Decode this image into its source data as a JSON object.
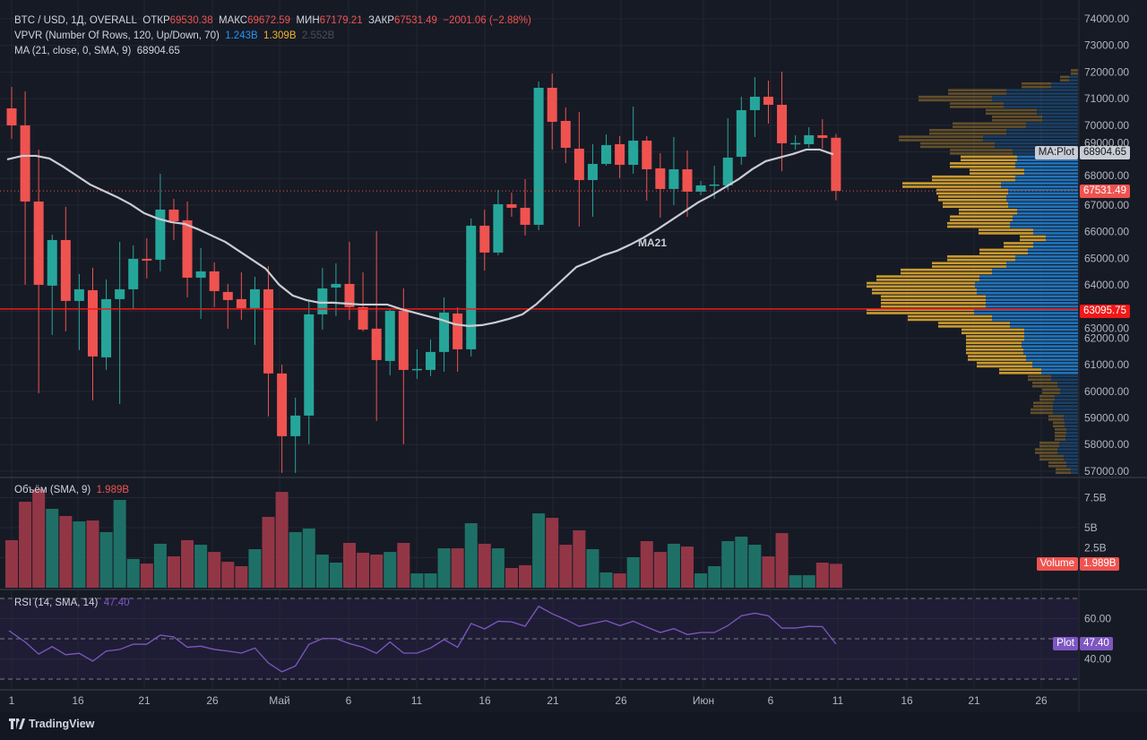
{
  "legend": {
    "symbol": "BTC / USD, 1Д, OVERALL",
    "open_label": "ОТКР",
    "open": "69530.38",
    "high_label": "МАКС",
    "high": "69672.59",
    "low_label": "МИН",
    "low": "67179.21",
    "close_label": "ЗАКР",
    "close": "67531.49",
    "change": "−2001.06 (−2.88%)",
    "vpvr_title": "VPVR (Number Of Rows, 120, Up/Down, 70)",
    "vpvr_up": "1.243B",
    "vpvr_down": "1.309B",
    "vpvr_total": "2.552B",
    "ma_title": "MA (21, close, 0, SMA, 9)",
    "ma_value": "68904.65",
    "volume_title": "Объём (SMA, 9)",
    "volume_value": "1.989B",
    "rsi_title": "RSI (14, SMA, 14)",
    "rsi_value": "47.40"
  },
  "ma_line_label": "MA21",
  "price_axis": [
    "74000.00",
    "73000.00",
    "72000.00",
    "71000.00",
    "70000.00",
    "69000.00",
    "68000.00",
    "67000.00",
    "66000.00",
    "65000.00",
    "64000.00",
    "63000.00",
    "62000.00",
    "61000.00",
    "60000.00",
    "59000.00",
    "58000.00",
    "57000.00"
  ],
  "tags": {
    "ma_name": "MA:Plot",
    "ma_value": "68904.65",
    "last_price": "67531.49",
    "hline_price": "63095.75",
    "volume_name": "Volume",
    "volume_value": "1.989B",
    "rsi_name": "Plot",
    "rsi_value": "47.40"
  },
  "volume_axis": [
    "7.5B",
    "5B",
    "2.5B"
  ],
  "rsi_axis": [
    "60.00",
    "40.00"
  ],
  "date_axis": [
    "1",
    "16",
    "21",
    "26",
    "Май",
    "6",
    "11",
    "16",
    "21",
    "26",
    "Июн",
    "6",
    "11",
    "16",
    "21",
    "26"
  ],
  "brand": "TradingView",
  "colors": {
    "up": "#26a69a",
    "down": "#ef5350",
    "ma": "#c9ccd3",
    "rsi": "#7e57c2",
    "vp_up": "#2179c4",
    "vp_down": "#d4a12f",
    "hline": "#f23645"
  },
  "chart_data": {
    "type": "candlestick",
    "price_range": [
      57000,
      74000
    ],
    "hline": 63095.75,
    "last_price": 67531.49,
    "candles_ohlc": [
      [
        70634,
        71442,
        69489,
        69994
      ],
      [
        69994,
        71274,
        64003,
        67133
      ],
      [
        67133,
        69086,
        59930,
        64003
      ],
      [
        63970,
        65888,
        62118,
        65686
      ],
      [
        65686,
        66931,
        62253,
        63397
      ],
      [
        63397,
        64407,
        61546,
        63835
      ],
      [
        63801,
        64642,
        59661,
        61310
      ],
      [
        61277,
        64205,
        60805,
        63464
      ],
      [
        63464,
        65619,
        59526,
        63835
      ],
      [
        63835,
        65484,
        63094,
        64979
      ],
      [
        64979,
        65753,
        64239,
        64912
      ],
      [
        64946,
        68177,
        64508,
        66830
      ],
      [
        66830,
        67234,
        65686,
        66393
      ],
      [
        66427,
        67133,
        63532,
        64272
      ],
      [
        64272,
        65383,
        62724,
        64508
      ],
      [
        64508,
        64845,
        63161,
        63767
      ],
      [
        63734,
        64037,
        62354,
        63431
      ],
      [
        63464,
        64474,
        62690,
        63127
      ],
      [
        63127,
        64306,
        61748,
        63835
      ],
      [
        63835,
        64710,
        59055,
        60671
      ],
      [
        60671,
        61007,
        56934,
        58314
      ],
      [
        58314,
        59762,
        56934,
        59088
      ],
      [
        59088,
        63431,
        58011,
        62892
      ],
      [
        62892,
        64642,
        62320,
        63868
      ],
      [
        63902,
        64811,
        62825,
        64037
      ],
      [
        64037,
        65619,
        62690,
        63161
      ],
      [
        63161,
        64474,
        62253,
        62320
      ],
      [
        62354,
        66023,
        58887,
        61176
      ],
      [
        61142,
        63100,
        60603,
        63027
      ],
      [
        63027,
        63868,
        58011,
        60805
      ],
      [
        60805,
        61579,
        60469,
        60840
      ],
      [
        60805,
        61950,
        60570,
        61479
      ],
      [
        61479,
        63532,
        60738,
        62960
      ],
      [
        62926,
        63161,
        60738,
        61579
      ],
      [
        61579,
        66494,
        61310,
        66225
      ],
      [
        66225,
        66830,
        64541,
        65215
      ],
      [
        65215,
        67571,
        65114,
        67032
      ],
      [
        67032,
        67470,
        66561,
        66898
      ],
      [
        66898,
        67975,
        65854,
        66258
      ],
      [
        66258,
        71644,
        66056,
        71408
      ],
      [
        71408,
        71947,
        69086,
        70129
      ],
      [
        70163,
        70668,
        68581,
        69153
      ],
      [
        69119,
        70499,
        66191,
        67941
      ],
      [
        67941,
        69288,
        66561,
        68547
      ],
      [
        68547,
        69658,
        68480,
        69254
      ],
      [
        69288,
        69591,
        68008,
        68513
      ],
      [
        68513,
        70701,
        68177,
        69422
      ],
      [
        69422,
        69591,
        67167,
        68345
      ],
      [
        68379,
        68951,
        66527,
        67605
      ],
      [
        67605,
        69557,
        66999,
        68345
      ],
      [
        68345,
        69052,
        66561,
        67504
      ],
      [
        67504,
        67908,
        67369,
        67740
      ],
      [
        67740,
        68480,
        67234,
        67773
      ],
      [
        67740,
        70264,
        67571,
        68783
      ],
      [
        68816,
        71072,
        68513,
        70567
      ],
      [
        70567,
        71812,
        69557,
        71072
      ],
      [
        71072,
        71677,
        70062,
        70769
      ],
      [
        70769,
        72014,
        68278,
        69322
      ],
      [
        69322,
        69624,
        69086,
        69330
      ],
      [
        69288,
        69927,
        69153,
        69624
      ],
      [
        69624,
        70230,
        69119,
        69523
      ],
      [
        69530.38,
        69672.59,
        67179.21,
        67531.49
      ]
    ],
    "ma21": [
      68716,
      68850,
      68850,
      68749,
      68446,
      68110,
      67773,
      67537,
      67301,
      67032,
      66696,
      66494,
      66359,
      66292,
      66090,
      65854,
      65619,
      65282,
      64946,
      64609,
      64003,
      63599,
      63431,
      63330,
      63330,
      63296,
      63262,
      63262,
      63262,
      63094,
      62960,
      62825,
      62690,
      62522,
      62455,
      62488,
      62589,
      62724,
      62892,
      63262,
      63734,
      64205,
      64676,
      64878,
      65114,
      65282,
      65518,
      65787,
      66090,
      66427,
      66763,
      67100,
      67369,
      67672,
      67975,
      68345,
      68648,
      68783,
      68917,
      69086,
      69086,
      68904.65
    ],
    "volume_b": [
      3.96,
      7.16,
      8.2,
      6.57,
      5.97,
      5.52,
      5.6,
      4.63,
      7.31,
      2.39,
      2.01,
      3.66,
      2.61,
      3.96,
      3.58,
      2.98,
      2.16,
      1.79,
      3.21,
      5.9,
      7.98,
      4.63,
      4.93,
      2.76,
      2.09,
      3.73,
      2.91,
      2.76,
      2.98,
      3.73,
      1.19,
      1.19,
      3.28,
      3.28,
      5.37,
      3.66,
      3.28,
      1.64,
      1.87,
      6.19,
      5.82,
      3.58,
      4.78,
      3.21,
      1.27,
      1.19,
      2.54,
      3.88,
      2.98,
      3.66,
      3.43,
      1.19,
      1.79,
      3.88,
      4.25,
      3.58,
      2.61,
      4.55,
      1.04,
      1.04,
      2.09,
      1.989
    ],
    "volume_range": [
      0,
      10
    ],
    "rsi": [
      54,
      48.4,
      42.4,
      46.1,
      42.1,
      42.8,
      38.9,
      43.9,
      44.7,
      47.3,
      47.3,
      51.8,
      50.9,
      45.8,
      46.3,
      44.7,
      43.9,
      42.9,
      45.4,
      38,
      33.6,
      36.5,
      47.2,
      50.1,
      50.1,
      47.6,
      45.8,
      42.8,
      48.4,
      42.9,
      42.9,
      45.4,
      49.6,
      45.8,
      57.6,
      54.9,
      58.7,
      58.4,
      56.2,
      66.1,
      62.4,
      59.5,
      56.2,
      57.6,
      59,
      56.5,
      58.7,
      55.8,
      53.1,
      55,
      52.1,
      53.1,
      53.1,
      56.5,
      61.4,
      62.7,
      61.4,
      55.3,
      55.3,
      56.2,
      56,
      47.4
    ],
    "rsi_bands": [
      30,
      50,
      70
    ],
    "vpvr_value_area": [
      60750,
      68750
    ],
    "vpvr_rows_price_up_down": [
      [
        72000,
        0,
        8
      ],
      [
        71750,
        10,
        10
      ],
      [
        71500,
        30,
        33
      ],
      [
        71250,
        80,
        65
      ],
      [
        71000,
        96,
        82
      ],
      [
        70750,
        83,
        60
      ],
      [
        70500,
        46,
        57
      ],
      [
        70250,
        40,
        56
      ],
      [
        70000,
        58,
        82
      ],
      [
        69750,
        80,
        86
      ],
      [
        69500,
        106,
        94
      ],
      [
        69250,
        93,
        83
      ],
      [
        69000,
        73,
        70
      ],
      [
        68750,
        68,
        63
      ],
      [
        68500,
        70,
        73
      ],
      [
        68250,
        60,
        61
      ],
      [
        68000,
        70,
        93
      ],
      [
        67750,
        86,
        110
      ],
      [
        67500,
        78,
        80
      ],
      [
        67250,
        80,
        76
      ],
      [
        67000,
        78,
        73
      ],
      [
        66750,
        68,
        65
      ],
      [
        66500,
        73,
        70
      ],
      [
        66250,
        76,
        70
      ],
      [
        66000,
        50,
        61
      ],
      [
        65750,
        36,
        29
      ],
      [
        65500,
        50,
        33
      ],
      [
        65250,
        56,
        54
      ],
      [
        65000,
        70,
        76
      ],
      [
        64750,
        80,
        83
      ],
      [
        64500,
        96,
        102
      ],
      [
        64250,
        110,
        115
      ],
      [
        64000,
        115,
        121
      ],
      [
        63750,
        113,
        117
      ],
      [
        63500,
        103,
        117
      ],
      [
        63250,
        103,
        117
      ],
      [
        63000,
        116,
        120
      ],
      [
        62750,
        96,
        94
      ],
      [
        62500,
        76,
        80
      ],
      [
        62250,
        60,
        70
      ],
      [
        62000,
        60,
        65
      ],
      [
        61750,
        63,
        62
      ],
      [
        61500,
        61,
        64
      ],
      [
        61250,
        58,
        65
      ],
      [
        61000,
        51,
        62
      ],
      [
        60750,
        41,
        47
      ],
      [
        60500,
        30,
        26
      ],
      [
        60250,
        23,
        28
      ],
      [
        60000,
        20,
        20
      ],
      [
        59750,
        26,
        17
      ],
      [
        59500,
        28,
        22
      ],
      [
        59250,
        28,
        25
      ],
      [
        59000,
        16,
        17
      ],
      [
        58750,
        15,
        13
      ],
      [
        58500,
        13,
        13
      ],
      [
        58250,
        14,
        12
      ],
      [
        58000,
        21,
        22
      ],
      [
        57750,
        23,
        25
      ],
      [
        57500,
        16,
        27
      ],
      [
        57250,
        13,
        20
      ],
      [
        57000,
        8,
        17
      ]
    ]
  }
}
